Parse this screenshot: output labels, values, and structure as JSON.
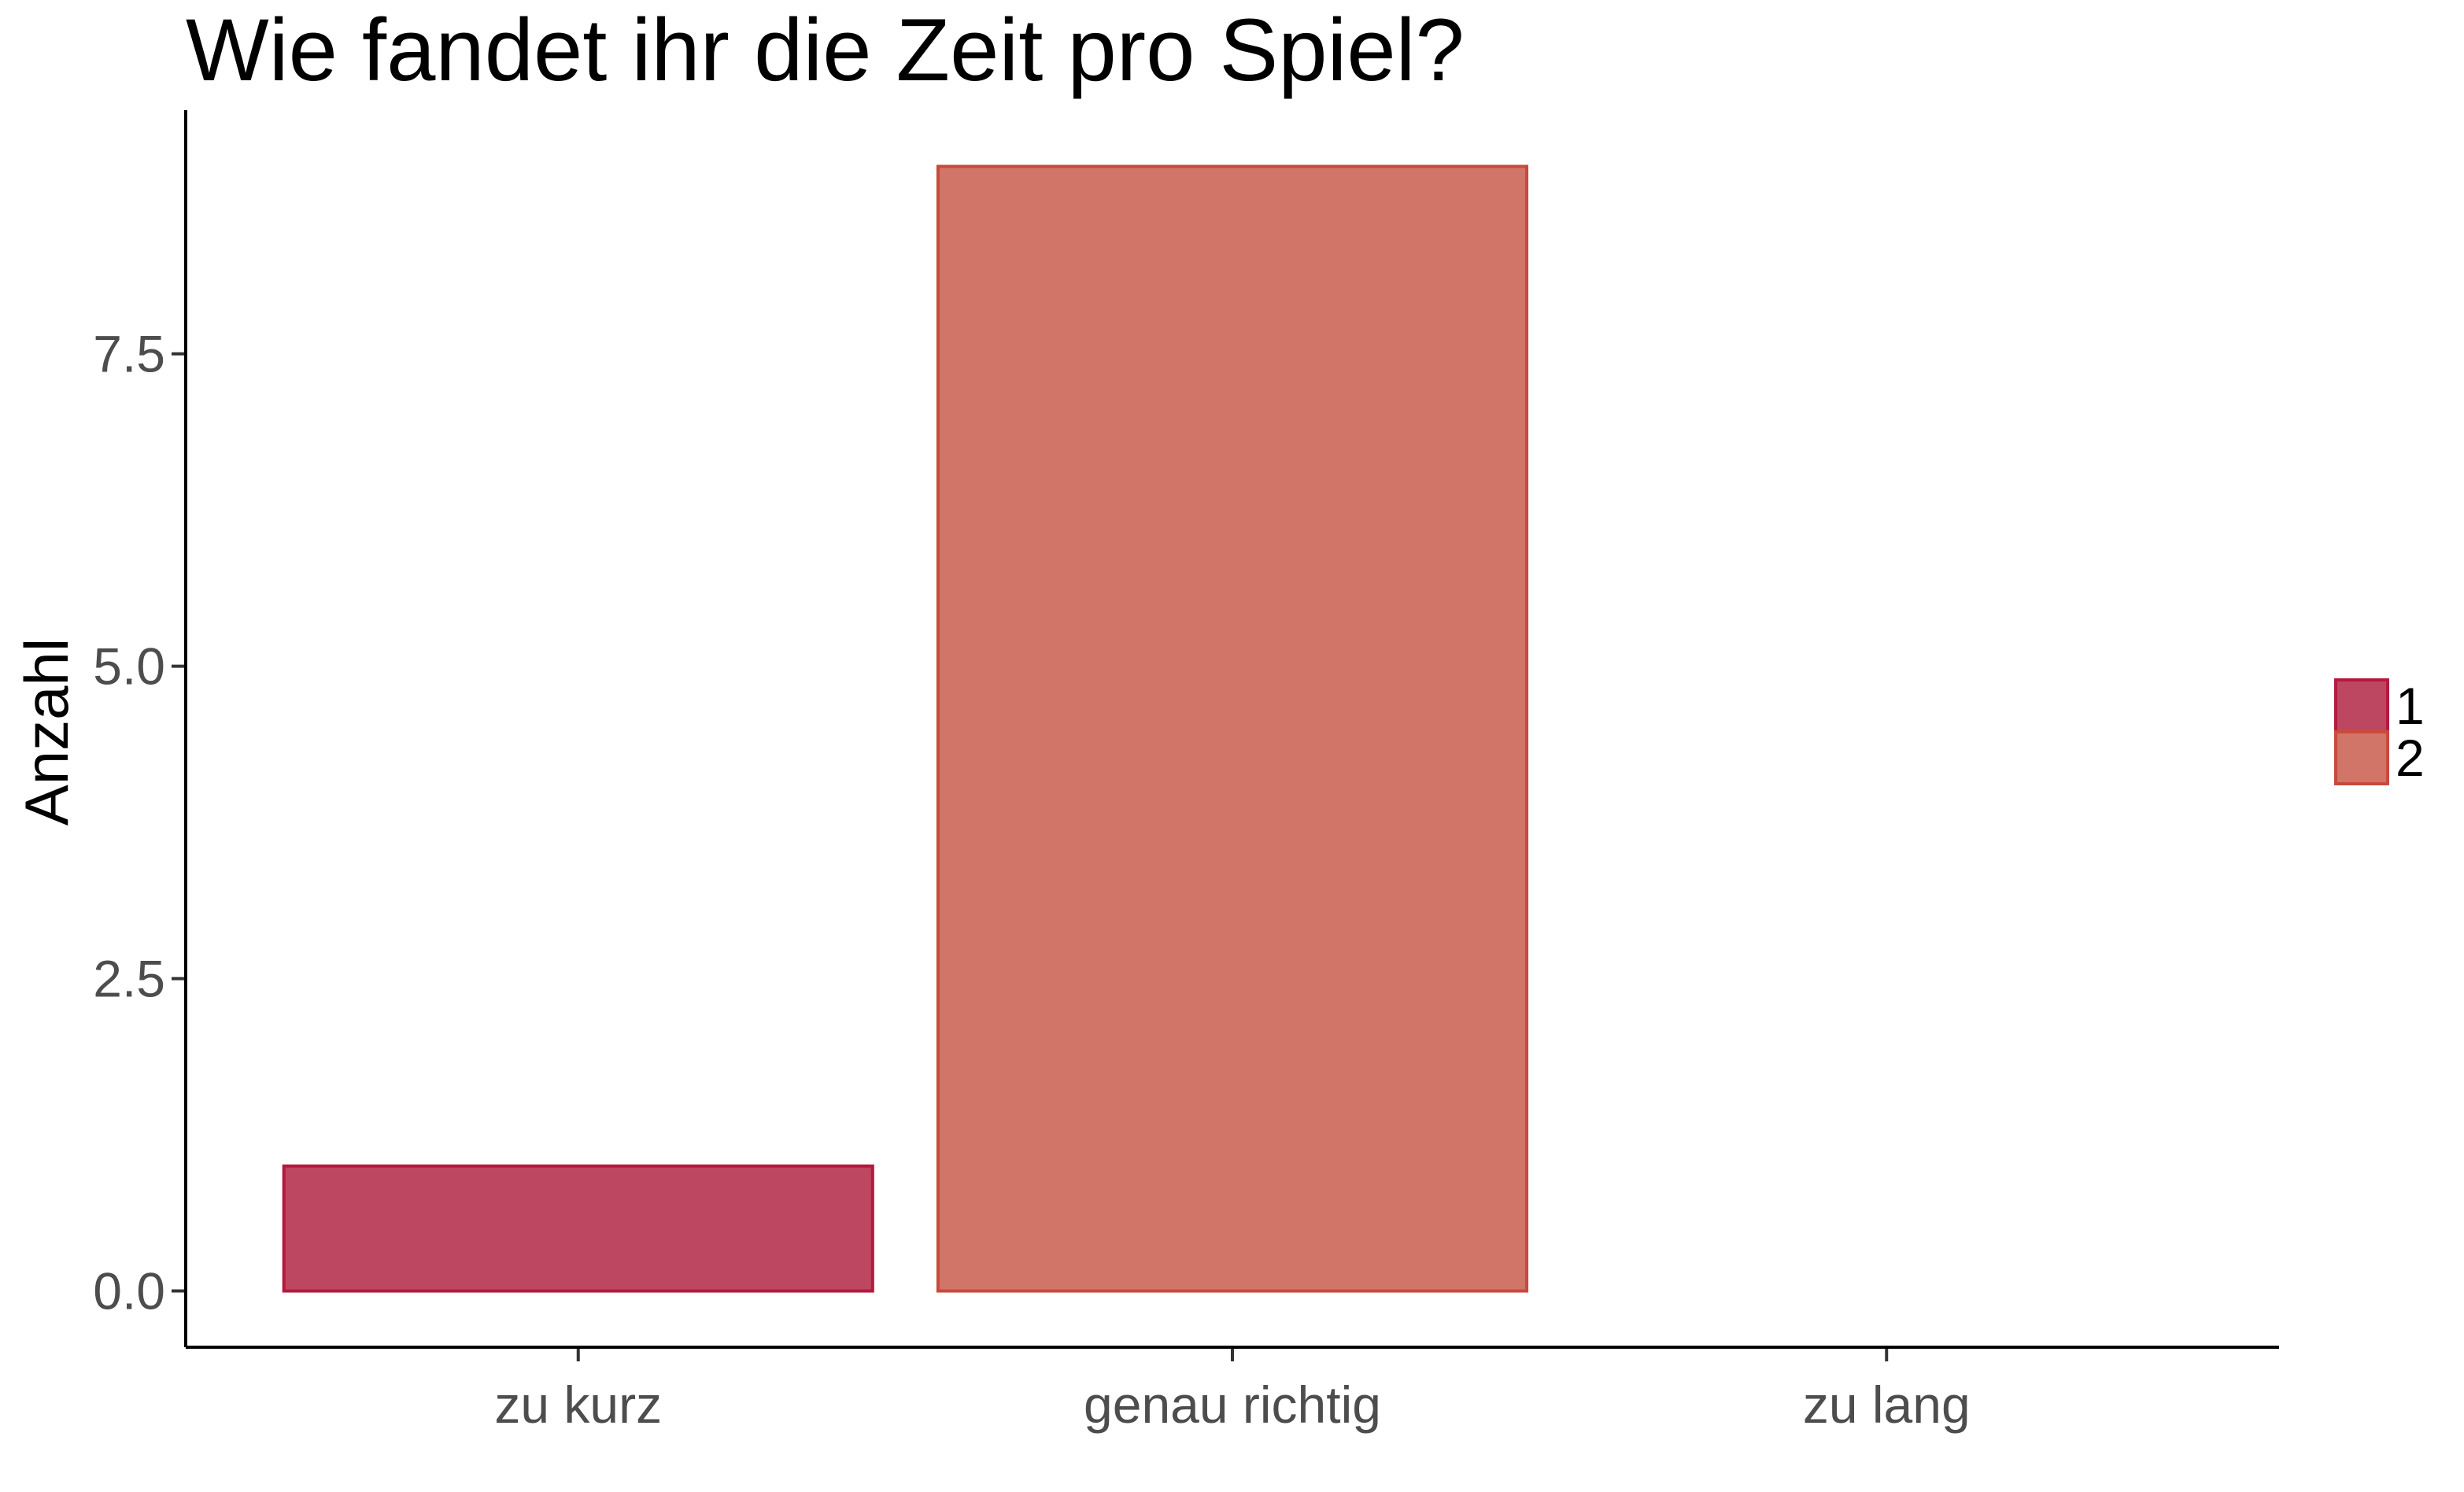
{
  "chart_data": {
    "type": "bar",
    "title": "Wie fandet ihr die Zeit pro Spiel?",
    "xlabel": "",
    "ylabel": "Anzahl",
    "categories": [
      "zu kurz",
      "genau richtig",
      "zu lang"
    ],
    "values": [
      1,
      9,
      0
    ],
    "fill_group": [
      "1",
      "2",
      null
    ],
    "ylim": [
      -0.45,
      9.45
    ],
    "yticks": [
      0.0,
      2.5,
      5.0,
      7.5
    ],
    "ytick_labels": [
      "0.0",
      "2.5",
      "5.0",
      "7.5"
    ],
    "grid": false,
    "legend": {
      "position": "right",
      "entries": [
        {
          "label": "1",
          "fill": "#bd4761",
          "stroke": "#b5193c"
        },
        {
          "label": "2",
          "fill": "#d17568",
          "stroke": "#c8493e"
        }
      ]
    }
  }
}
